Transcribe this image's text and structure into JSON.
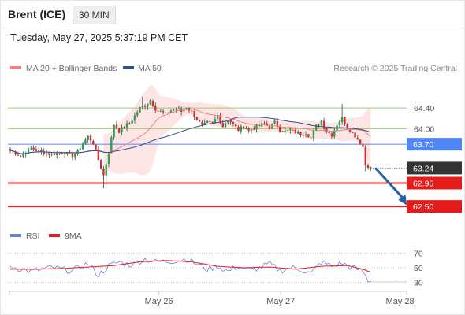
{
  "header": {
    "title": "Brent (ICE)",
    "interval": "30 MIN"
  },
  "timestamp": "Tuesday, May 27, 2025 5:37:19 PM CET",
  "copyright": "Research © 2025 Trading Central",
  "colors": {
    "up": "#2e9e4f",
    "down": "#d32f2f",
    "ma20": "#f08080",
    "ma50": "#2f4f8f",
    "bollinger_fill": "#fde0e0",
    "pivot": "#4f86f7",
    "support": "#e41b1b",
    "resistance": "#9ccc65",
    "last_price": "#333333",
    "rsi": "#6a7fd6",
    "rsi_ma": "#e41b1b",
    "arrow": "#2b5fa8"
  },
  "chart_data": [
    {
      "type": "candlestick",
      "legend": [
        {
          "name": "MA 20 + Bollinger Bands",
          "color": "#f08080"
        },
        {
          "name": "MA 50",
          "color": "#2f4f8f"
        }
      ],
      "legend_position": "top-left",
      "x_tick_labels": [
        {
          "label": "May 26",
          "index": 47
        },
        {
          "label": "May 27",
          "index": 94
        },
        {
          "label": "May 28",
          "index": 140
        }
      ],
      "ylim": [
        62.35,
        64.72
      ],
      "price_levels": [
        {
          "label": "64.40",
          "value": 64.4,
          "kind": "resistance"
        },
        {
          "label": "64.00",
          "value": 64.0,
          "kind": "resistance"
        },
        {
          "label": "63.70",
          "value": 63.7,
          "kind": "pivot"
        },
        {
          "label": "63.24",
          "value": 63.24,
          "kind": "last"
        },
        {
          "label": "62.95",
          "value": 62.95,
          "kind": "support"
        },
        {
          "label": "62.50",
          "value": 62.5,
          "kind": "support"
        }
      ],
      "candles_count": 140,
      "anchor_closes": [
        [
          0,
          63.58
        ],
        [
          4,
          63.48
        ],
        [
          8,
          63.62
        ],
        [
          12,
          63.55
        ],
        [
          16,
          63.5
        ],
        [
          20,
          63.56
        ],
        [
          24,
          63.48
        ],
        [
          26,
          63.55
        ],
        [
          28,
          63.72
        ],
        [
          30,
          63.85
        ],
        [
          32,
          63.72
        ],
        [
          34,
          63.4
        ],
        [
          36,
          63.1
        ],
        [
          38,
          63.55
        ],
        [
          40,
          64.08
        ],
        [
          42,
          63.95
        ],
        [
          44,
          64.05
        ],
        [
          46,
          64.1
        ],
        [
          48,
          64.25
        ],
        [
          50,
          64.4
        ],
        [
          52,
          64.45
        ],
        [
          54,
          64.55
        ],
        [
          56,
          64.38
        ],
        [
          58,
          64.33
        ],
        [
          60,
          64.28
        ],
        [
          62,
          64.35
        ],
        [
          64,
          64.38
        ],
        [
          66,
          64.33
        ],
        [
          68,
          64.42
        ],
        [
          70,
          64.32
        ],
        [
          72,
          64.18
        ],
        [
          74,
          64.05
        ],
        [
          76,
          64.12
        ],
        [
          78,
          64.1
        ],
        [
          80,
          64.25
        ],
        [
          82,
          64.05
        ],
        [
          84,
          64.18
        ],
        [
          86,
          64.08
        ],
        [
          88,
          63.98
        ],
        [
          90,
          64.05
        ],
        [
          92,
          63.96
        ],
        [
          94,
          64.02
        ],
        [
          96,
          64.05
        ],
        [
          98,
          64.1
        ],
        [
          100,
          64.02
        ],
        [
          102,
          64.12
        ],
        [
          104,
          63.98
        ],
        [
          106,
          63.95
        ],
        [
          108,
          63.98
        ],
        [
          110,
          63.93
        ],
        [
          112,
          63.9
        ],
        [
          114,
          63.92
        ],
        [
          116,
          63.82
        ],
        [
          118,
          64.05
        ],
        [
          120,
          64.15
        ],
        [
          122,
          63.95
        ],
        [
          124,
          63.88
        ],
        [
          126,
          64.08
        ],
        [
          128,
          64.2
        ],
        [
          130,
          64.02
        ],
        [
          132,
          63.92
        ],
        [
          134,
          63.8
        ],
        [
          136,
          63.65
        ],
        [
          137,
          63.3
        ],
        [
          138,
          63.28
        ],
        [
          139,
          63.24
        ]
      ],
      "outlook_arrow": {
        "from": {
          "index": 139,
          "value": 63.24
        },
        "to": {
          "index": 153,
          "value": 62.52
        }
      }
    },
    {
      "type": "line",
      "legend": [
        {
          "name": "RSI",
          "color": "#6a7fd6"
        },
        {
          "name": "9MA",
          "color": "#e41b1b"
        }
      ],
      "y_ticks": [
        "70",
        "50",
        "30"
      ],
      "ylim": [
        20,
        80
      ],
      "anchor_rsi": [
        [
          0,
          52
        ],
        [
          8,
          45
        ],
        [
          16,
          50
        ],
        [
          24,
          46
        ],
        [
          30,
          56
        ],
        [
          34,
          40
        ],
        [
          38,
          52
        ],
        [
          42,
          58
        ],
        [
          46,
          54
        ],
        [
          52,
          62
        ],
        [
          56,
          58
        ],
        [
          62,
          59
        ],
        [
          68,
          62
        ],
        [
          72,
          55
        ],
        [
          76,
          48
        ],
        [
          80,
          52
        ],
        [
          84,
          45
        ],
        [
          88,
          52
        ],
        [
          92,
          46
        ],
        [
          96,
          50
        ],
        [
          100,
          55
        ],
        [
          104,
          46
        ],
        [
          108,
          50
        ],
        [
          112,
          48
        ],
        [
          116,
          42
        ],
        [
          120,
          58
        ],
        [
          124,
          52
        ],
        [
          128,
          56
        ],
        [
          132,
          50
        ],
        [
          136,
          45
        ],
        [
          138,
          33
        ],
        [
          139,
          31
        ]
      ],
      "anchor_ma": [
        [
          0,
          48
        ],
        [
          10,
          48
        ],
        [
          20,
          49
        ],
        [
          30,
          51
        ],
        [
          40,
          53
        ],
        [
          50,
          58
        ],
        [
          60,
          60
        ],
        [
          70,
          58
        ],
        [
          80,
          52
        ],
        [
          90,
          50
        ],
        [
          100,
          51
        ],
        [
          110,
          48
        ],
        [
          120,
          52
        ],
        [
          130,
          53
        ],
        [
          136,
          48
        ],
        [
          139,
          44
        ]
      ],
      "last_value": 31
    }
  ]
}
